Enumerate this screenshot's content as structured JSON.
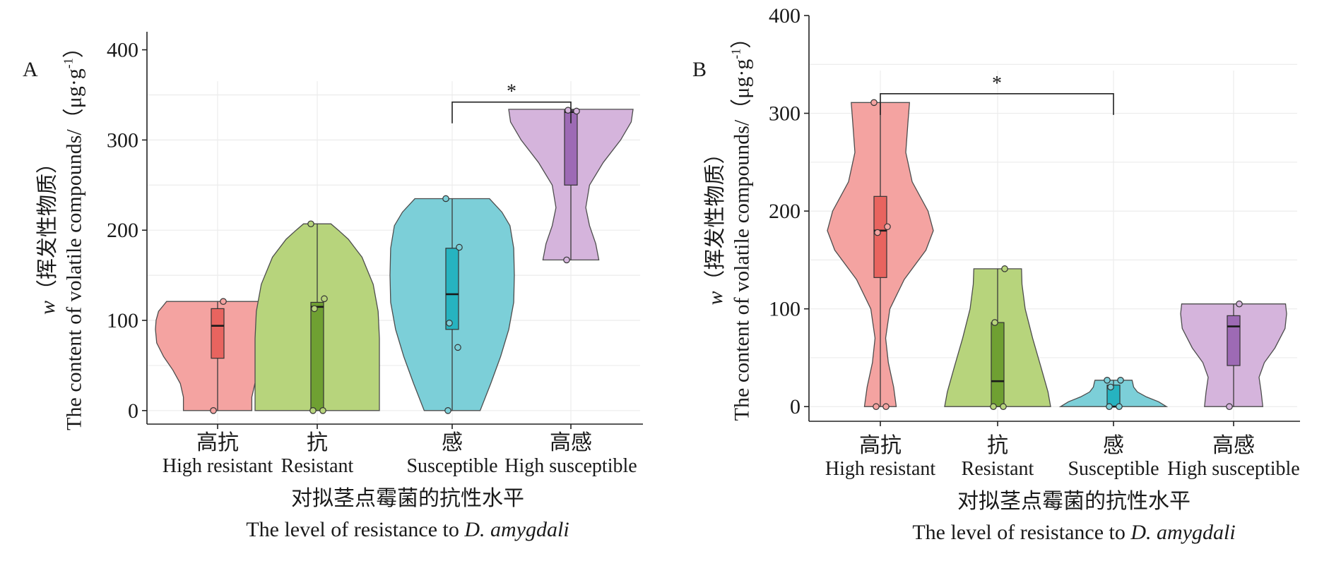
{
  "chart_data": [
    {
      "type": "violin",
      "panel_label": "A",
      "ylabel": {
        "prefix": "w",
        "zh": "（挥发性物质）",
        "en": "The content of volatile compounds/（μg·g",
        "sup": "-1",
        "close": "）"
      },
      "xlabel_zh": "对拟茎点霉菌的抗性水平",
      "xlabel_en": "The level of resistance to",
      "xlabel_species": "D. amygdali",
      "ylim": [
        -15,
        420
      ],
      "yticks": [
        0,
        100,
        200,
        300,
        400
      ],
      "grid": true,
      "categories": [
        {
          "zh": "高抗",
          "en": "High resistant",
          "color": "#f4a3a1",
          "box_color": "#e8645f",
          "points": [
            0,
            121
          ],
          "box": {
            "q1": 58,
            "median": 94,
            "q3": 113
          },
          "violin": [
            [
              0,
              0.55
            ],
            [
              15,
              0.55
            ],
            [
              30,
              0.6
            ],
            [
              45,
              0.72
            ],
            [
              60,
              0.87
            ],
            [
              75,
              0.98
            ],
            [
              90,
              1.0
            ],
            [
              100,
              0.99
            ],
            [
              110,
              0.95
            ],
            [
              116,
              0.88
            ],
            [
              121,
              0.82
            ]
          ]
        },
        {
          "zh": "抗",
          "en": "Resistant",
          "color": "#b7d47c",
          "box_color": "#6fa032",
          "points": [
            0,
            0,
            113,
            124,
            207
          ],
          "box": {
            "q1": 0,
            "median": 115,
            "q3": 120
          },
          "violin": [
            [
              0,
              1.0
            ],
            [
              40,
              1.0
            ],
            [
              80,
              1.0
            ],
            [
              110,
              0.98
            ],
            [
              140,
              0.9
            ],
            [
              170,
              0.72
            ],
            [
              190,
              0.5
            ],
            [
              200,
              0.34
            ],
            [
              207,
              0.22
            ]
          ]
        },
        {
          "zh": "感",
          "en": "Susceptible",
          "color": "#7ccfd8",
          "box_color": "#26b3c0",
          "points": [
            0,
            70,
            97,
            181,
            235
          ],
          "box": {
            "q1": 90,
            "median": 129,
            "q3": 180
          },
          "violin": [
            [
              0,
              0.45
            ],
            [
              30,
              0.62
            ],
            [
              60,
              0.78
            ],
            [
              90,
              0.91
            ],
            [
              120,
              0.99
            ],
            [
              150,
              1.0
            ],
            [
              180,
              0.99
            ],
            [
              205,
              0.93
            ],
            [
              220,
              0.8
            ],
            [
              235,
              0.6
            ]
          ]
        },
        {
          "zh": "高感",
          "en": "High susceptible",
          "color": "#d5b4dc",
          "box_color": "#9d6ab5",
          "points": [
            167,
            332,
            333
          ],
          "box": {
            "q1": 250,
            "median": 331,
            "q3": 333
          },
          "violin": [
            [
              167,
              0.45
            ],
            [
              185,
              0.4
            ],
            [
              205,
              0.3
            ],
            [
              225,
              0.24
            ],
            [
              250,
              0.3
            ],
            [
              275,
              0.52
            ],
            [
              300,
              0.8
            ],
            [
              320,
              0.97
            ],
            [
              334,
              1.0
            ]
          ]
        }
      ],
      "significance": {
        "from": 2,
        "to": 3,
        "y": 342,
        "label": "*"
      }
    },
    {
      "type": "violin",
      "panel_label": "B",
      "ylabel": {
        "prefix": "w",
        "zh": "（挥发性物质）",
        "en": "The content of volatile compounds/（μg·g",
        "sup": "-1",
        "close": "）"
      },
      "xlabel_zh": "对拟茎点霉菌的抗性水平",
      "xlabel_en": "The level of resistance to",
      "xlabel_species": "D. amygdali",
      "ylim": [
        -15,
        400
      ],
      "yticks": [
        0,
        100,
        200,
        300,
        400
      ],
      "grid": true,
      "categories": [
        {
          "zh": "高抗",
          "en": "High resistant",
          "color": "#f4a3a1",
          "box_color": "#e8645f",
          "points": [
            0,
            0,
            178,
            184,
            311
          ],
          "box": {
            "q1": 132,
            "median": 180,
            "q3": 215
          },
          "violin": [
            [
              0,
              0.3
            ],
            [
              20,
              0.25
            ],
            [
              45,
              0.15
            ],
            [
              70,
              0.1
            ],
            [
              100,
              0.18
            ],
            [
              130,
              0.45
            ],
            [
              160,
              0.86
            ],
            [
              180,
              1.0
            ],
            [
              200,
              0.9
            ],
            [
              230,
              0.6
            ],
            [
              260,
              0.48
            ],
            [
              290,
              0.52
            ],
            [
              311,
              0.55
            ]
          ]
        },
        {
          "zh": "抗",
          "en": "Resistant",
          "color": "#b7d47c",
          "box_color": "#6fa032",
          "points": [
            0,
            0,
            86,
            141
          ],
          "box": {
            "q1": 0,
            "median": 26,
            "q3": 86
          },
          "violin": [
            [
              0,
              1.0
            ],
            [
              15,
              0.95
            ],
            [
              40,
              0.82
            ],
            [
              70,
              0.66
            ],
            [
              100,
              0.52
            ],
            [
              125,
              0.46
            ],
            [
              141,
              0.45
            ]
          ]
        },
        {
          "zh": "感",
          "en": "Susceptible",
          "color": "#7ccfd8",
          "box_color": "#26b3c0",
          "points": [
            0,
            0,
            20,
            27,
            27
          ],
          "box": {
            "q1": 0,
            "median": 0,
            "q3": 22
          },
          "violin": [
            [
              0,
              1.0
            ],
            [
              5,
              0.85
            ],
            [
              10,
              0.62
            ],
            [
              15,
              0.45
            ],
            [
              20,
              0.38
            ],
            [
              25,
              0.36
            ],
            [
              27,
              0.35
            ]
          ]
        },
        {
          "zh": "高感",
          "en": "High susceptible",
          "color": "#d5b4dc",
          "box_color": "#9d6ab5",
          "points": [
            0,
            105
          ],
          "box": {
            "q1": 42,
            "median": 82,
            "q3": 93
          },
          "violin": [
            [
              0,
              0.55
            ],
            [
              15,
              0.52
            ],
            [
              30,
              0.48
            ],
            [
              45,
              0.58
            ],
            [
              60,
              0.78
            ],
            [
              80,
              0.97
            ],
            [
              95,
              1.0
            ],
            [
              105,
              0.98
            ]
          ]
        }
      ],
      "significance": {
        "from": 0,
        "to": 2,
        "y": 320,
        "label": "*"
      }
    }
  ]
}
